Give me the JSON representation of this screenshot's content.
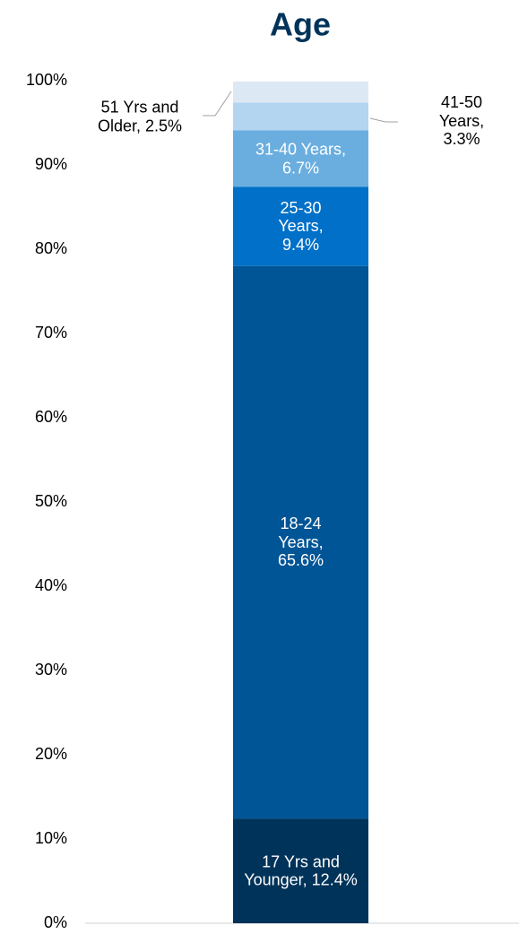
{
  "chart_data": {
    "type": "stacked_bar",
    "title": "Age",
    "categories": [
      null
    ],
    "series": [
      {
        "name": "17 Yrs and Younger",
        "color": "#003359",
        "values": [
          12.4
        ],
        "value_labels": [
          "17 Yrs and Younger, 12.4%"
        ]
      },
      {
        "name": "18-24 Years",
        "color": "#005596",
        "values": [
          65.6
        ],
        "value_labels": [
          "18-24 Years, 65.6%"
        ]
      },
      {
        "name": "25-30 Years",
        "color": "#0070c8",
        "values": [
          9.4
        ],
        "value_labels": [
          "25-30 Years, 9.4%"
        ]
      },
      {
        "name": "31-40 Years",
        "color": "#6aaee0",
        "values": [
          6.7
        ],
        "value_labels": [
          "31-40 Years, 6.7%"
        ]
      },
      {
        "name": "41-50 Years",
        "color": "#b3d5f0",
        "values": [
          3.3
        ],
        "value_labels": [
          "41-50 Years, 3.3%"
        ]
      },
      {
        "name": "51 Yrs and Older",
        "color": "#dce9f5",
        "values": [
          2.5
        ],
        "value_labels": [
          "51 Yrs and Older, 2.5%"
        ]
      }
    ],
    "ylim": [
      0,
      100
    ],
    "yticks": [
      {
        "value": 0,
        "label": "0%"
      },
      {
        "value": 10,
        "label": "10%"
      },
      {
        "value": 20,
        "label": "20%"
      },
      {
        "value": 30,
        "label": "30%"
      },
      {
        "value": 40,
        "label": "40%"
      },
      {
        "value": 50,
        "label": "50%"
      },
      {
        "value": 60,
        "label": "60%"
      },
      {
        "value": 70,
        "label": "70%"
      },
      {
        "value": 80,
        "label": "80%"
      },
      {
        "value": 90,
        "label": "90%"
      },
      {
        "value": 100,
        "label": "100%"
      }
    ],
    "grid": false
  }
}
